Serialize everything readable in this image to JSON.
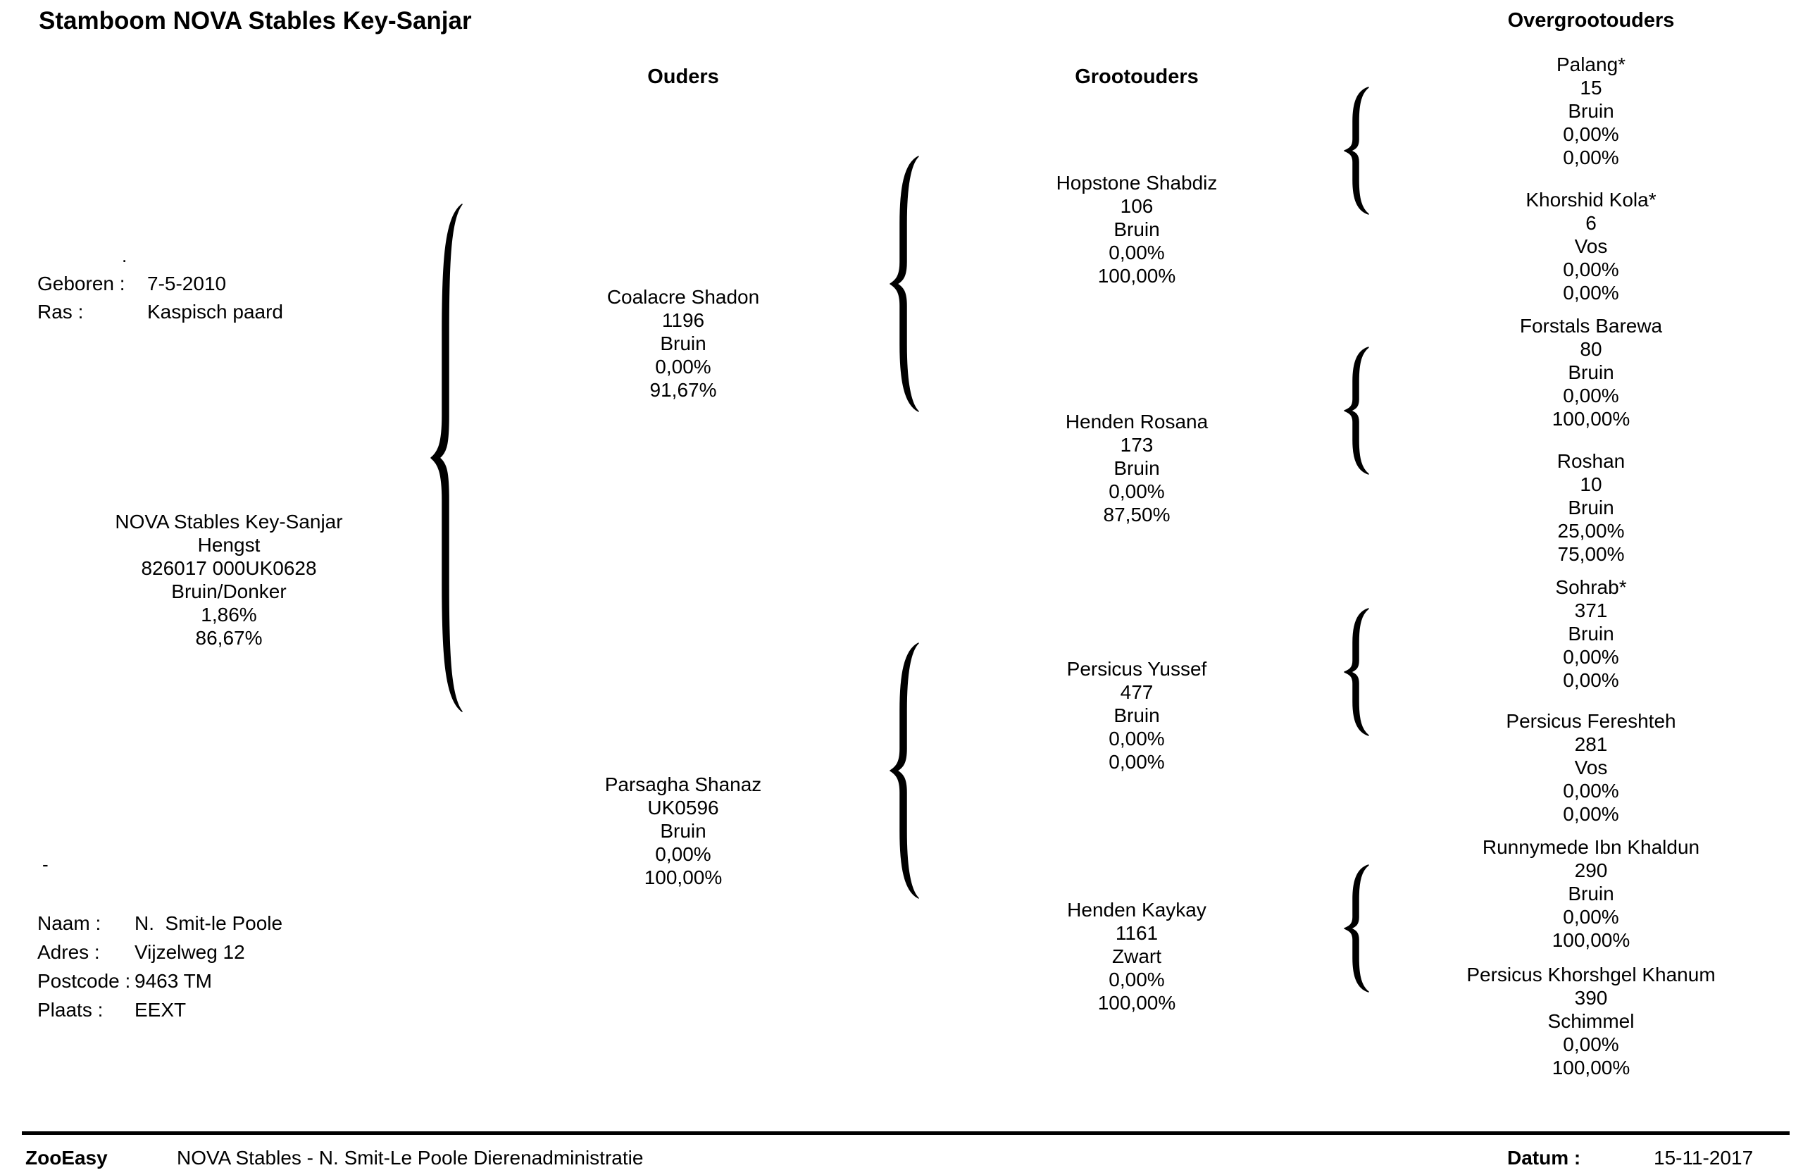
{
  "title": "Stamboom NOVA Stables Key-Sanjar",
  "columns": {
    "parents": "Ouders",
    "grandparents": "Grootouders",
    "great_grandparents": "Overgrootouders"
  },
  "info": {
    "born_label": "Geboren :",
    "born_value": "7-5-2010",
    "breed_label": "Ras :",
    "breed_value": "Kaspisch paard"
  },
  "owner": {
    "name_label": "Naam :",
    "name_value": "N.  Smit-le Poole",
    "address_label": "Adres :",
    "address_value": "Vijzelweg 12",
    "postcode_label": "Postcode :",
    "postcode_value": "9463 TM",
    "city_label": "Plaats :",
    "city_value": "EEXT"
  },
  "subject": {
    "name": "NOVA Stables Key-Sanjar",
    "sex": "Hengst",
    "reg": "826017 000UK0628",
    "color": "Bruin/Donker",
    "pct1": "1,86%",
    "pct2": "86,67%"
  },
  "parents": [
    {
      "name": "Coalacre Shadon",
      "reg": "1196",
      "color": "Bruin",
      "pct1": "0,00%",
      "pct2": "91,67%"
    },
    {
      "name": "Parsagha Shanaz",
      "reg": "UK0596",
      "color": "Bruin",
      "pct1": "0,00%",
      "pct2": "100,00%"
    }
  ],
  "grandparents": [
    {
      "name": "Hopstone Shabdiz",
      "reg": "106",
      "color": "Bruin",
      "pct1": "0,00%",
      "pct2": "100,00%"
    },
    {
      "name": "Henden Rosana",
      "reg": "173",
      "color": "Bruin",
      "pct1": "0,00%",
      "pct2": "87,50%"
    },
    {
      "name": "Persicus Yussef",
      "reg": "477",
      "color": "Bruin",
      "pct1": "0,00%",
      "pct2": "0,00%"
    },
    {
      "name": "Henden Kaykay",
      "reg": "1161",
      "color": "Zwart",
      "pct1": "0,00%",
      "pct2": "100,00%"
    }
  ],
  "great_grandparents": [
    {
      "name": "Palang*",
      "reg": "15",
      "color": "Bruin",
      "pct1": "0,00%",
      "pct2": "0,00%"
    },
    {
      "name": "Khorshid Kola*",
      "reg": "6",
      "color": "Vos",
      "pct1": "0,00%",
      "pct2": "0,00%"
    },
    {
      "name": "Forstals Barewa",
      "reg": "80",
      "color": "Bruin",
      "pct1": "0,00%",
      "pct2": "100,00%"
    },
    {
      "name": "Roshan",
      "reg": "10",
      "color": "Bruin",
      "pct1": "25,00%",
      "pct2": "75,00%"
    },
    {
      "name": "Sohrab*",
      "reg": "371",
      "color": "Bruin",
      "pct1": "0,00%",
      "pct2": "0,00%"
    },
    {
      "name": "Persicus Fereshteh",
      "reg": "281",
      "color": "Vos",
      "pct1": "0,00%",
      "pct2": "0,00%"
    },
    {
      "name": "Runnymede Ibn Khaldun",
      "reg": "290",
      "color": "Bruin",
      "pct1": "0,00%",
      "pct2": "100,00%"
    },
    {
      "name": "Persicus Khorshgel Khanum",
      "reg": "390",
      "color": "Schimmel",
      "pct1": "0,00%",
      "pct2": "100,00%"
    }
  ],
  "footer": {
    "brand": "ZooEasy",
    "org": "NOVA Stables - N. Smit-Le Poole Dierenadministratie",
    "date_label": "Datum :",
    "date_value": "15-11-2017"
  }
}
